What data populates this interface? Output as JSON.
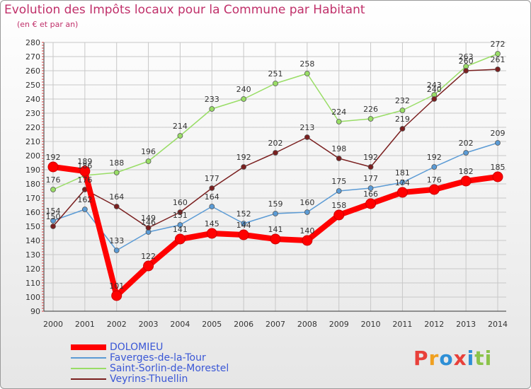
{
  "header": {
    "title": "Evolution des Impôts locaux pour la Commune par Habitant",
    "subtitle": "(en € et par an)"
  },
  "brand": {
    "text": "Proxiti",
    "colors": [
      "#e8403a",
      "#f0a020",
      "#2e8fd6",
      "#e8403a",
      "#2e8fd6",
      "#8bc34a",
      "#8bc34a"
    ]
  },
  "chart_data": {
    "type": "line",
    "title": "Evolution des Impôts locaux pour la Commune par Habitant",
    "subtitle": "(en € et par an)",
    "x": [
      "2000",
      "2001",
      "2002",
      "2003",
      "2004",
      "2005",
      "2006",
      "2007",
      "2008",
      "2009",
      "2010",
      "2011",
      "2012",
      "2013",
      "2014"
    ],
    "ylim": [
      90,
      280
    ],
    "yticks": [
      90,
      100,
      110,
      120,
      130,
      140,
      150,
      160,
      170,
      180,
      190,
      200,
      210,
      220,
      230,
      240,
      250,
      260,
      270,
      280
    ],
    "grid": true,
    "legend_position": "bottom-left",
    "series": [
      {
        "name": "DOLOMIEU",
        "color": "#ff0000",
        "emphasis": true,
        "values": [
          192,
          189,
          101,
          122,
          141,
          145,
          144,
          141,
          140,
          158,
          166,
          174,
          176,
          182,
          185
        ]
      },
      {
        "name": "Faverges-de-la-Tour",
        "color": "#5b9bd5",
        "values": [
          154,
          162,
          133,
          146,
          151,
          164,
          152,
          159,
          160,
          175,
          177,
          181,
          192,
          202,
          209
        ]
      },
      {
        "name": "Saint-Sorlin-de-Morestel",
        "color": "#99dd66",
        "values": [
          176,
          186,
          188,
          196,
          214,
          233,
          240,
          251,
          258,
          224,
          226,
          232,
          243,
          263,
          272
        ]
      },
      {
        "name": "Veyrins-Thuellin",
        "color": "#7a1f1f",
        "values": [
          150,
          176,
          164,
          149,
          160,
          177,
          192,
          202,
          213,
          198,
          192,
          219,
          240,
          260,
          261
        ]
      }
    ]
  }
}
